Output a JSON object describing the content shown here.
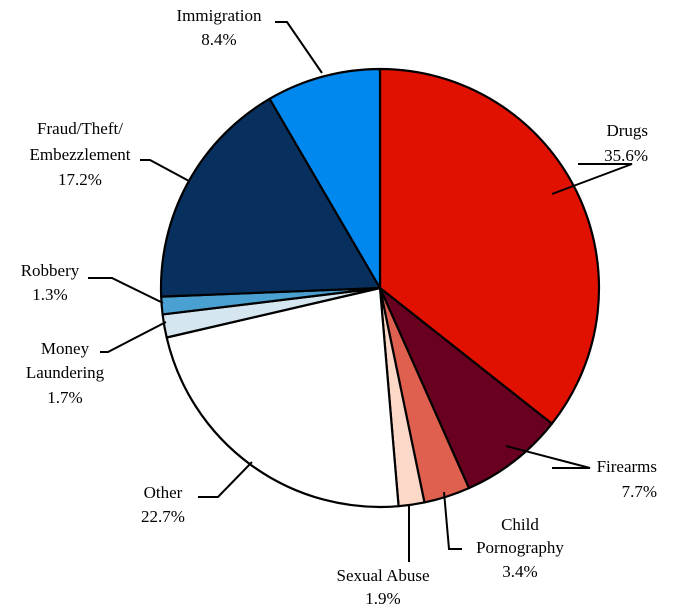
{
  "chart_data": {
    "type": "pie",
    "slices": [
      {
        "label": "Drugs",
        "value": 35.6,
        "display": "35.6%",
        "color": "#e01100"
      },
      {
        "label": "Firearms",
        "value": 7.7,
        "display": "7.7%",
        "color": "#6a0020"
      },
      {
        "label": "Child Pornography",
        "value": 3.4,
        "display": "3.4%",
        "color": "#e06050"
      },
      {
        "label": "Sexual Abuse",
        "value": 1.9,
        "display": "1.9%",
        "color": "#fcd8c8"
      },
      {
        "label": "Other",
        "value": 22.7,
        "display": "22.7%",
        "color": "#ffffff"
      },
      {
        "label": "Money Laundering",
        "value": 1.7,
        "display": "1.7%",
        "color": "#d6e6f0"
      },
      {
        "label": "Robbery",
        "value": 1.3,
        "display": "1.3%",
        "color": "#4aa0d0"
      },
      {
        "label": "Fraud/Theft/ Embezzlement",
        "value": 17.2,
        "display": "17.2%",
        "color": "#08305e"
      },
      {
        "label": "Immigration",
        "value": 8.4,
        "display": "8.4%",
        "color": "#0088ee"
      }
    ],
    "start_angle": "12 o'clock",
    "direction": "clockwise",
    "legend": "none"
  }
}
